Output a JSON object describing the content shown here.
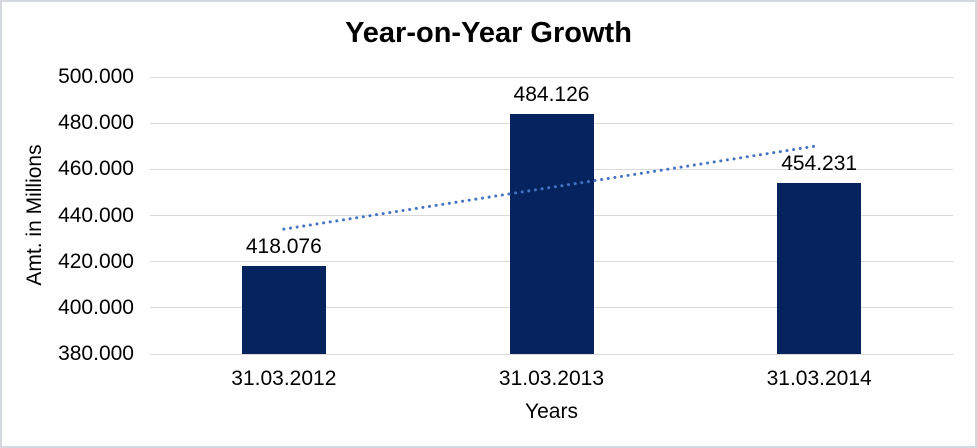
{
  "chart_data": {
    "type": "bar",
    "title": "Year-on-Year Growth",
    "xlabel": "Years",
    "ylabel": "Amt. in Millions",
    "categories": [
      "31.03.2012",
      "31.03.2013",
      "31.03.2014"
    ],
    "values": [
      418.076,
      484.126,
      454.231
    ],
    "data_labels": [
      "418.076",
      "484.126",
      "454.231"
    ],
    "ylim": [
      380,
      500
    ],
    "yticks": [
      {
        "value": 380,
        "label": "380.000"
      },
      {
        "value": 400,
        "label": "400.000"
      },
      {
        "value": 420,
        "label": "420.000"
      },
      {
        "value": 440,
        "label": "440.000"
      },
      {
        "value": 460,
        "label": "460.000"
      },
      {
        "value": 480,
        "label": "480.000"
      },
      {
        "value": 500,
        "label": "500.000"
      }
    ],
    "grid": true,
    "legend": false,
    "bar_color": "#05235F",
    "gridline_color": "#d9d9d9",
    "text_color": "#000000",
    "trendline": {
      "type": "linear",
      "style": "dotted",
      "color": "#4472C4",
      "start_value": 434.1,
      "end_value": 470.3
    }
  }
}
